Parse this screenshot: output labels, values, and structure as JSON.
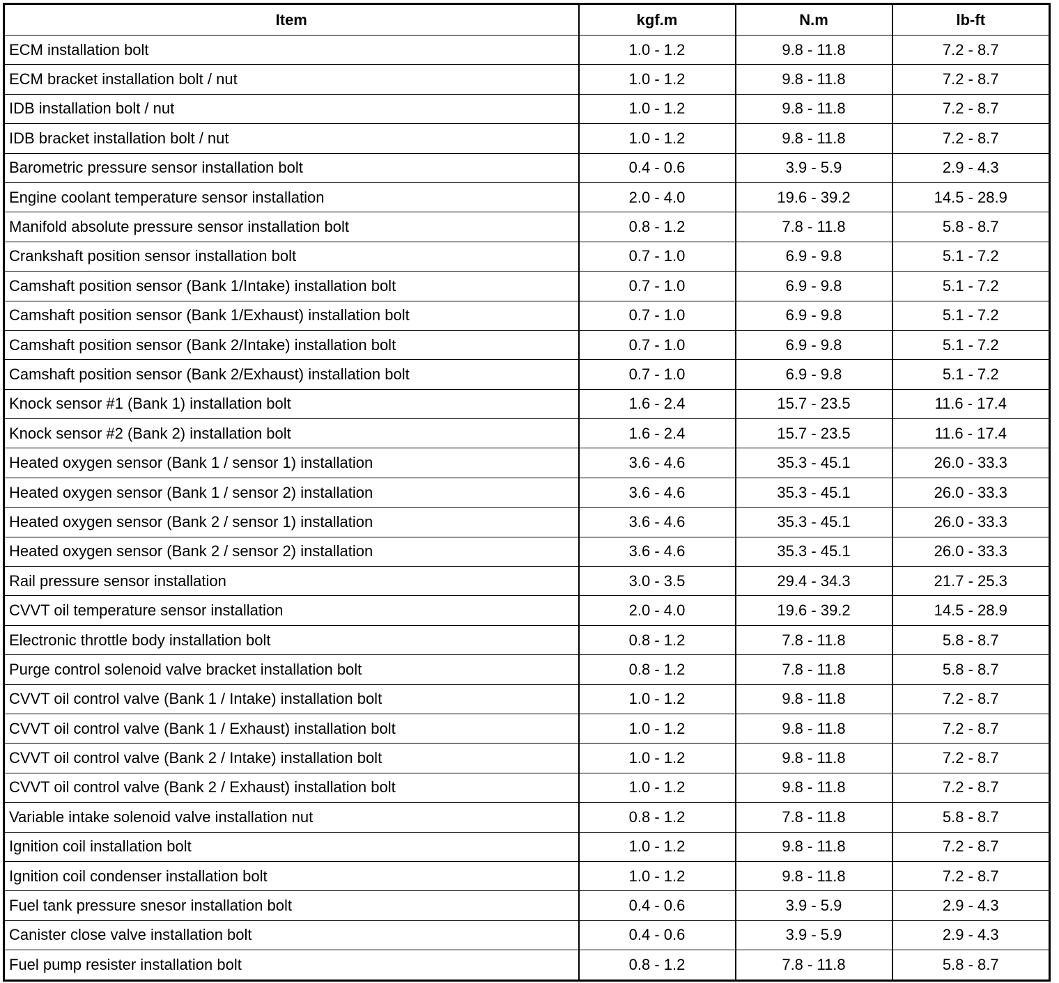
{
  "table": {
    "headers": [
      "Item",
      "kgf.m",
      "N.m",
      "lb-ft"
    ],
    "rows": [
      [
        "ECM installation bolt",
        "1.0 - 1.2",
        "9.8 - 11.8",
        "7.2 - 8.7"
      ],
      [
        "ECM bracket installation bolt / nut",
        "1.0 - 1.2",
        "9.8 - 11.8",
        "7.2 - 8.7"
      ],
      [
        "IDB installation bolt / nut",
        "1.0 - 1.2",
        "9.8 - 11.8",
        "7.2 - 8.7"
      ],
      [
        "IDB bracket installation bolt / nut",
        "1.0 - 1.2",
        "9.8 - 11.8",
        "7.2 - 8.7"
      ],
      [
        "Barometric pressure sensor installation bolt",
        "0.4 - 0.6",
        "3.9 - 5.9",
        "2.9 - 4.3"
      ],
      [
        "Engine coolant temperature sensor installation",
        "2.0 - 4.0",
        "19.6 - 39.2",
        "14.5 - 28.9"
      ],
      [
        "Manifold absolute pressure sensor installation bolt",
        "0.8 - 1.2",
        "7.8 - 11.8",
        "5.8 - 8.7"
      ],
      [
        "Crankshaft position sensor installation bolt",
        "0.7 - 1.0",
        "6.9 - 9.8",
        "5.1 - 7.2"
      ],
      [
        "Camshaft position sensor (Bank 1/Intake) installation bolt",
        "0.7 - 1.0",
        "6.9 - 9.8",
        "5.1 - 7.2"
      ],
      [
        "Camshaft position sensor (Bank 1/Exhaust) installation bolt",
        "0.7 - 1.0",
        "6.9 - 9.8",
        "5.1 - 7.2"
      ],
      [
        "Camshaft position sensor (Bank 2/Intake) installation bolt",
        "0.7 - 1.0",
        "6.9 - 9.8",
        "5.1 - 7.2"
      ],
      [
        "Camshaft position sensor (Bank 2/Exhaust) installation bolt",
        "0.7 - 1.0",
        "6.9 - 9.8",
        "5.1 - 7.2"
      ],
      [
        "Knock sensor #1 (Bank 1) installation bolt",
        "1.6 - 2.4",
        "15.7 - 23.5",
        "11.6 - 17.4"
      ],
      [
        "Knock sensor #2 (Bank 2) installation bolt",
        "1.6 - 2.4",
        "15.7 - 23.5",
        "11.6 - 17.4"
      ],
      [
        "Heated oxygen sensor (Bank 1 / sensor 1) installation",
        "3.6 - 4.6",
        "35.3 - 45.1",
        "26.0 - 33.3"
      ],
      [
        "Heated oxygen sensor (Bank 1 / sensor 2) installation",
        "3.6 - 4.6",
        "35.3 - 45.1",
        "26.0 - 33.3"
      ],
      [
        "Heated oxygen sensor (Bank 2 / sensor 1) installation",
        "3.6 - 4.6",
        "35.3 - 45.1",
        "26.0 - 33.3"
      ],
      [
        "Heated oxygen sensor (Bank 2 / sensor 2) installation",
        "3.6 - 4.6",
        "35.3 - 45.1",
        "26.0 - 33.3"
      ],
      [
        "Rail pressure sensor installation",
        "3.0 - 3.5",
        "29.4 - 34.3",
        "21.7 - 25.3"
      ],
      [
        "CVVT oil temperature sensor installation",
        "2.0 - 4.0",
        "19.6 - 39.2",
        "14.5 - 28.9"
      ],
      [
        "Electronic throttle body installation bolt",
        "0.8 - 1.2",
        "7.8 - 11.8",
        "5.8 - 8.7"
      ],
      [
        "Purge control solenoid valve bracket installation bolt",
        "0.8 - 1.2",
        "7.8 - 11.8",
        "5.8 - 8.7"
      ],
      [
        "CVVT oil control valve (Bank 1 / Intake) installation bolt",
        "1.0 - 1.2",
        "9.8 - 11.8",
        "7.2 - 8.7"
      ],
      [
        "CVVT oil control valve (Bank 1 / Exhaust) installation bolt",
        "1.0 - 1.2",
        "9.8 - 11.8",
        "7.2 - 8.7"
      ],
      [
        "CVVT oil control valve (Bank 2 / Intake) installation bolt",
        "1.0 - 1.2",
        "9.8 - 11.8",
        "7.2 - 8.7"
      ],
      [
        "CVVT oil control valve (Bank 2 / Exhaust) installation bolt",
        "1.0 - 1.2",
        "9.8 - 11.8",
        "7.2 - 8.7"
      ],
      [
        "Variable intake solenoid valve installation nut",
        "0.8 - 1.2",
        "7.8 - 11.8",
        "5.8 - 8.7"
      ],
      [
        "Ignition coil installation bolt",
        "1.0 - 1.2",
        "9.8 - 11.8",
        "7.2 - 8.7"
      ],
      [
        "Ignition coil condenser installation bolt",
        "1.0 - 1.2",
        "9.8 - 11.8",
        "7.2 - 8.7"
      ],
      [
        "Fuel tank pressure snesor installation bolt",
        "0.4 - 0.6",
        "3.9 - 5.9",
        "2.9 - 4.3"
      ],
      [
        "Canister close valve installation bolt",
        "0.4 - 0.6",
        "3.9 - 5.9",
        "2.9 - 4.3"
      ],
      [
        "Fuel pump resister installation bolt",
        "0.8 - 1.2",
        "7.8 - 11.8",
        "5.8 - 8.7"
      ]
    ]
  }
}
